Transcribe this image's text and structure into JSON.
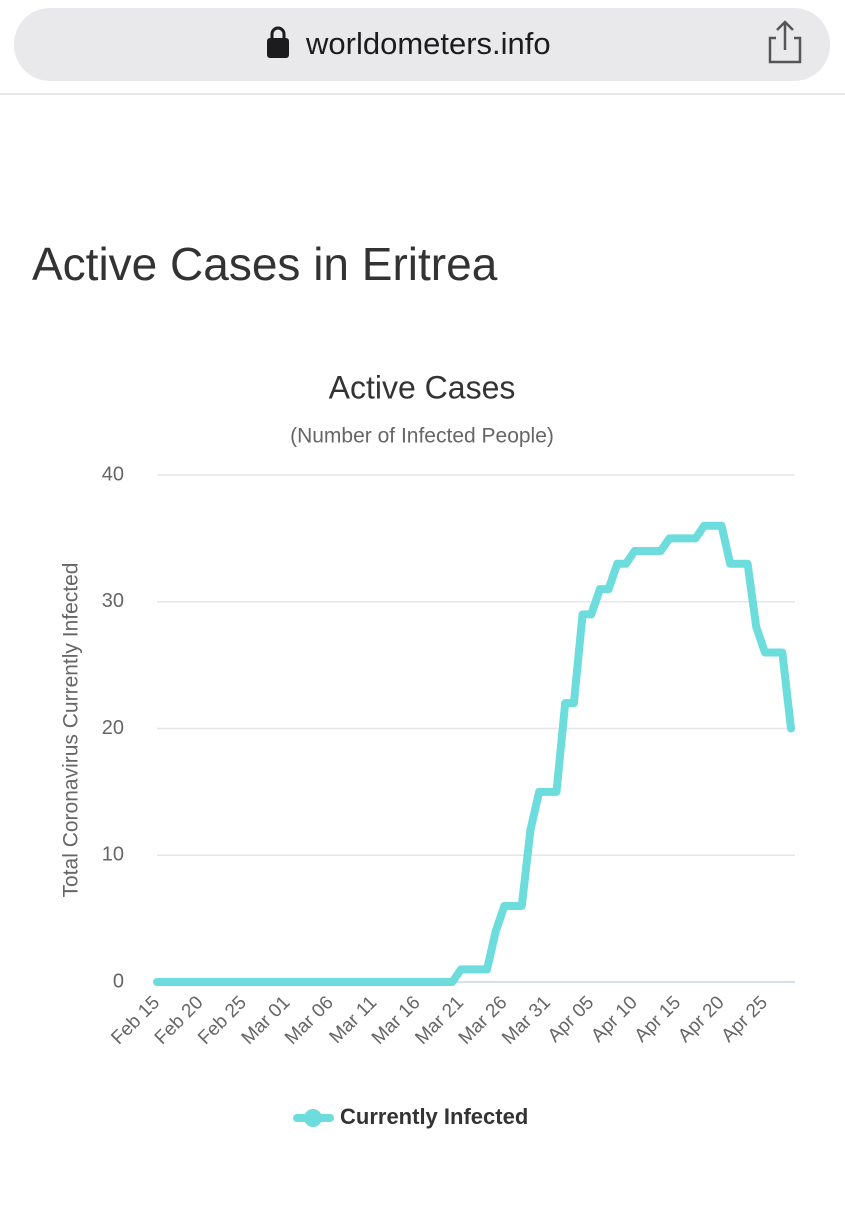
{
  "browser": {
    "url": "worldometers.info"
  },
  "page": {
    "heading": "Active Cases in Eritrea"
  },
  "chart_data": {
    "type": "line",
    "title": "Active Cases",
    "subtitle": "(Number of Infected People)",
    "y_label": "Total Coronavirus Currently Infected",
    "categories": [
      "Feb 15",
      null,
      null,
      null,
      null,
      "Feb 20",
      null,
      null,
      null,
      null,
      "Feb 25",
      null,
      null,
      null,
      null,
      "Mar 01",
      null,
      null,
      null,
      null,
      "Mar 06",
      null,
      null,
      null,
      null,
      "Mar 11",
      null,
      null,
      null,
      null,
      "Mar 16",
      null,
      null,
      null,
      null,
      "Mar 21",
      null,
      null,
      null,
      null,
      "Mar 26",
      null,
      null,
      null,
      null,
      "Mar 31",
      null,
      null,
      null,
      null,
      "Apr 05",
      null,
      null,
      null,
      null,
      "Apr 10",
      null,
      null,
      null,
      null,
      "Apr 15",
      null,
      null,
      null,
      null,
      "Apr 20",
      null,
      null,
      null,
      null,
      "Apr 25",
      null,
      null,
      null
    ],
    "series": [
      {
        "name": "Currently Infected",
        "color": "#6cdcdc",
        "values": [
          0,
          0,
          0,
          0,
          0,
          0,
          0,
          0,
          0,
          0,
          0,
          0,
          0,
          0,
          0,
          0,
          0,
          0,
          0,
          0,
          0,
          0,
          0,
          0,
          0,
          0,
          0,
          0,
          0,
          0,
          0,
          0,
          0,
          0,
          0,
          1,
          1,
          1,
          1,
          4,
          6,
          6,
          6,
          12,
          15,
          15,
          15,
          22,
          22,
          29,
          29,
          31,
          31,
          33,
          33,
          34,
          34,
          34,
          34,
          35,
          35,
          35,
          35,
          36,
          36,
          36,
          33,
          33,
          33,
          28,
          26,
          26,
          26,
          20
        ]
      }
    ],
    "ylim": [
      0,
      40
    ],
    "yticks": [
      0,
      10,
      20,
      30,
      40
    ],
    "grid": true,
    "legend": "bottom"
  }
}
